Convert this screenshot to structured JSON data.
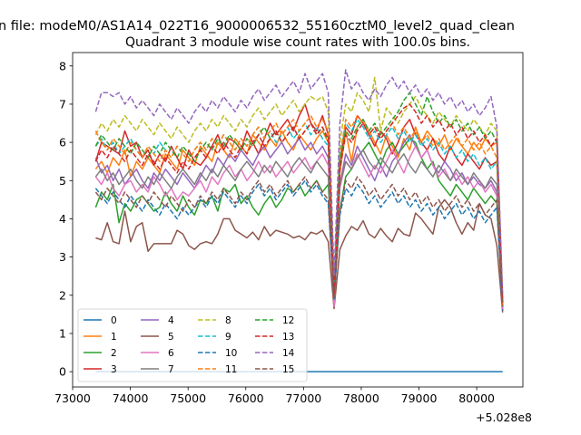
{
  "figure": {
    "suptitle": "n file: modeM0/AS1A14_022T16_9000006532_55160cztM0_level2_quad_clean",
    "title": "Quadrant 3 module wise count rates with 100.0s bins."
  },
  "chart_data": {
    "type": "line",
    "title": "Quadrant 3 module wise count rates with 100.0s bins.",
    "xlabel": "",
    "ylabel": "",
    "x_offset_label": "+5.028e8",
    "xlim": [
      73000,
      80800
    ],
    "ylim": [
      -0.4,
      8.35
    ],
    "xticks": [
      73000,
      74000,
      75000,
      76000,
      77000,
      78000,
      79000,
      80000
    ],
    "xtick_labels": [
      "73000",
      "74000",
      "75000",
      "76000",
      "77000",
      "78000",
      "79000",
      "80000"
    ],
    "yticks": [
      0,
      1,
      2,
      3,
      4,
      5,
      6,
      7,
      8
    ],
    "ytick_labels": [
      "0",
      "1",
      "2",
      "3",
      "4",
      "5",
      "6",
      "7",
      "8"
    ],
    "grid": false,
    "legend_position": "lower-left",
    "x_range": [
      73400,
      80450
    ],
    "x_step": 100,
    "series": [
      {
        "name": "0",
        "color": "#1f77b4",
        "dash": "solid",
        "values": [
          0.0,
          0.0
        ]
      },
      {
        "name": "1",
        "color": "#ff7f0e",
        "dash": "solid",
        "values": [
          5.3,
          5.5,
          5.2,
          5.6,
          5.4,
          5.8,
          5.1,
          5.5,
          5.3,
          5.6,
          5.4,
          5.2,
          5.7,
          5.5,
          5.3,
          5.8,
          5.6,
          5.4,
          5.9,
          5.7,
          5.5,
          6.0,
          5.8,
          5.6,
          6.1,
          5.9,
          5.7,
          6.2,
          6.0,
          5.8,
          6.1,
          5.9,
          6.3,
          6.0,
          5.8,
          6.2,
          6.0,
          5.8,
          6.1,
          6.3,
          6.0,
          1.9,
          5.2,
          6.3,
          5.5,
          6.4,
          6.6,
          6.3,
          6.0,
          5.7,
          6.2,
          5.9,
          5.6,
          6.1,
          5.8,
          6.4,
          6.0,
          6.3,
          6.1,
          5.9,
          6.2,
          5.8,
          6.1,
          5.9,
          5.7,
          6.0,
          5.8,
          6.1,
          5.9,
          6.0,
          1.6
        ]
      },
      {
        "name": "2",
        "color": "#2ca02c",
        "dash": "solid",
        "values": [
          4.3,
          4.7,
          4.5,
          4.9,
          3.9,
          4.4,
          4.2,
          4.5,
          4.6,
          4.4,
          4.2,
          4.3,
          4.7,
          4.4,
          4.2,
          4.6,
          4.3,
          4.1,
          4.5,
          4.4,
          4.6,
          4.2,
          4.8,
          4.7,
          4.9,
          4.4,
          4.6,
          4.3,
          4.1,
          4.4,
          4.6,
          4.3,
          4.5,
          4.8,
          4.7,
          4.9,
          4.6,
          4.8,
          5.0,
          4.7,
          4.9,
          2.0,
          4.2,
          5.1,
          5.3,
          5.6,
          5.8,
          6.0,
          5.7,
          5.4,
          5.8,
          6.0,
          5.7,
          5.9,
          6.1,
          6.0,
          5.6,
          5.3,
          5.5,
          5.0,
          4.8,
          4.6,
          4.9,
          4.7,
          4.5,
          4.8,
          4.6,
          4.4,
          4.6,
          4.4,
          1.6
        ]
      },
      {
        "name": "3",
        "color": "#d62728",
        "dash": "solid",
        "values": [
          5.5,
          6.0,
          5.9,
          5.8,
          5.7,
          6.3,
          5.9,
          6.0,
          5.6,
          5.8,
          5.4,
          5.7,
          5.5,
          5.9,
          5.6,
          5.3,
          5.8,
          5.5,
          5.4,
          5.6,
          5.9,
          6.2,
          5.8,
          6.1,
          6.0,
          5.8,
          6.3,
          6.0,
          5.7,
          6.1,
          6.5,
          6.2,
          6.4,
          6.6,
          6.3,
          6.7,
          7.0,
          6.5,
          6.3,
          6.7,
          6.2,
          1.8,
          5.5,
          6.4,
          6.2,
          6.7,
          6.5,
          6.2,
          5.9,
          6.3,
          6.1,
          5.7,
          6.0,
          6.4,
          6.6,
          6.2,
          6.0,
          5.8,
          6.1,
          5.7,
          5.5,
          5.9,
          5.6,
          5.4,
          5.7,
          5.5,
          5.3,
          5.6,
          5.4,
          5.5,
          1.7
        ]
      },
      {
        "name": "4",
        "color": "#9467bd",
        "dash": "solid",
        "values": [
          5.6,
          5.2,
          5.4,
          5.0,
          5.3,
          4.9,
          5.1,
          5.3,
          5.0,
          4.8,
          5.2,
          5.0,
          5.3,
          5.1,
          4.9,
          5.2,
          5.0,
          4.8,
          5.1,
          5.4,
          5.2,
          5.6,
          5.4,
          5.7,
          5.5,
          5.8,
          5.6,
          5.4,
          5.7,
          5.9,
          5.6,
          5.8,
          6.0,
          5.7,
          5.9,
          6.1,
          5.8,
          6.0,
          5.7,
          5.9,
          5.6,
          1.8,
          4.9,
          5.7,
          5.4,
          5.9,
          5.6,
          5.3,
          5.0,
          5.4,
          5.1,
          5.5,
          5.7,
          6.0,
          6.2,
          5.9,
          5.6,
          5.8,
          5.4,
          5.2,
          5.5,
          5.3,
          5.0,
          5.2,
          4.9,
          5.1,
          4.9,
          4.8,
          5.0,
          4.7,
          1.7
        ]
      },
      {
        "name": "5",
        "color": "#8c564b",
        "dash": "solid",
        "values": [
          3.5,
          3.45,
          3.9,
          3.4,
          3.35,
          4.2,
          3.4,
          3.8,
          3.9,
          3.15,
          3.35,
          3.35,
          3.35,
          3.35,
          3.7,
          3.6,
          3.3,
          3.2,
          3.35,
          3.4,
          3.35,
          3.6,
          4.0,
          4.0,
          3.7,
          3.6,
          3.5,
          3.65,
          3.45,
          3.8,
          3.55,
          3.7,
          3.65,
          3.6,
          3.5,
          3.55,
          3.45,
          3.65,
          3.6,
          3.7,
          3.4,
          1.65,
          3.2,
          3.55,
          3.8,
          3.7,
          3.95,
          3.6,
          3.5,
          3.75,
          3.55,
          3.4,
          3.75,
          3.6,
          3.55,
          4.15,
          4.0,
          3.8,
          3.6,
          4.3,
          4.5,
          4.3,
          3.9,
          3.6,
          3.9,
          3.7,
          4.4,
          4.1,
          4.0,
          3.3,
          1.55
        ]
      },
      {
        "name": "6",
        "color": "#e377c2",
        "dash": "solid",
        "values": [
          5.1,
          4.9,
          5.2,
          4.8,
          4.6,
          4.9,
          5.0,
          4.7,
          4.9,
          4.7,
          5.1,
          4.9,
          4.6,
          4.8,
          4.5,
          4.7,
          4.6,
          4.8,
          5.0,
          4.7,
          5.1,
          4.9,
          5.2,
          5.4,
          5.1,
          5.3,
          5.0,
          5.2,
          5.5,
          5.2,
          5.4,
          5.1,
          5.3,
          5.5,
          5.2,
          5.4,
          5.6,
          5.3,
          5.5,
          5.7,
          5.4,
          1.7,
          4.8,
          5.5,
          5.3,
          5.7,
          5.4,
          5.1,
          5.4,
          5.2,
          5.5,
          5.8,
          5.5,
          5.2,
          5.6,
          5.9,
          5.6,
          5.8,
          5.4,
          5.1,
          5.3,
          5.0,
          5.2,
          4.9,
          5.1,
          4.8,
          5.0,
          4.7,
          4.9,
          4.6,
          1.6
        ]
      },
      {
        "name": "7",
        "color": "#7f7f7f",
        "dash": "solid",
        "values": [
          5.1,
          5.3,
          5.0,
          5.2,
          4.9,
          5.1,
          5.3,
          5.0,
          4.8,
          5.1,
          4.9,
          5.2,
          5.0,
          4.8,
          5.1,
          5.3,
          5.1,
          4.9,
          5.2,
          5.0,
          5.3,
          5.1,
          5.4,
          5.2,
          5.0,
          5.3,
          5.5,
          5.3,
          5.1,
          5.4,
          5.2,
          5.5,
          5.3,
          5.1,
          5.4,
          5.6,
          5.4,
          5.2,
          5.5,
          5.3,
          5.1,
          1.9,
          4.9,
          5.5,
          5.3,
          5.6,
          5.8,
          5.5,
          5.3,
          5.6,
          5.4,
          5.2,
          5.5,
          5.7,
          5.4,
          5.2,
          5.5,
          5.3,
          5.1,
          5.4,
          5.2,
          5.0,
          5.3,
          5.1,
          4.9,
          5.2,
          5.0,
          4.8,
          5.1,
          4.9,
          1.7
        ]
      },
      {
        "name": "8",
        "color": "#bcbd22",
        "dash": "dashed",
        "values": [
          6.2,
          6.5,
          6.3,
          6.6,
          6.4,
          6.7,
          6.5,
          6.3,
          6.6,
          6.4,
          6.2,
          6.5,
          6.3,
          6.1,
          6.4,
          6.2,
          6.0,
          6.3,
          6.5,
          6.3,
          6.6,
          6.4,
          6.7,
          6.5,
          6.3,
          6.6,
          6.4,
          6.7,
          6.9,
          6.6,
          6.8,
          7.0,
          6.7,
          6.9,
          7.1,
          6.8,
          7.0,
          7.2,
          7.1,
          7.2,
          6.8,
          2.3,
          6.0,
          7.0,
          6.8,
          7.3,
          7.1,
          6.8,
          7.7,
          6.3,
          6.9,
          6.7,
          6.5,
          6.8,
          7.0,
          7.2,
          6.9,
          6.7,
          6.5,
          6.8,
          6.6,
          6.4,
          6.7,
          6.5,
          6.3,
          6.6,
          6.4,
          6.2,
          6.5,
          6.3,
          1.9
        ]
      },
      {
        "name": "9",
        "color": "#17becf",
        "dash": "dashed",
        "values": [
          5.9,
          6.1,
          5.8,
          6.0,
          5.7,
          5.9,
          6.1,
          5.8,
          5.6,
          5.9,
          5.7,
          6.0,
          5.8,
          5.6,
          5.9,
          5.7,
          5.5,
          5.8,
          6.0,
          5.8,
          6.1,
          5.9,
          6.2,
          6.0,
          5.8,
          6.1,
          5.9,
          6.2,
          6.4,
          6.1,
          6.3,
          6.0,
          6.2,
          6.4,
          6.1,
          6.3,
          6.5,
          6.2,
          6.4,
          6.1,
          5.9,
          2.2,
          5.7,
          6.5,
          6.3,
          6.6,
          6.4,
          6.1,
          6.3,
          6.0,
          6.2,
          6.4,
          6.1,
          6.3,
          6.0,
          6.2,
          5.9,
          6.1,
          5.8,
          6.0,
          5.7,
          5.9,
          5.6,
          5.8,
          5.5,
          5.7,
          5.4,
          5.6,
          5.3,
          5.5,
          1.8
        ]
      },
      {
        "name": "10",
        "color": "#1f77b4",
        "dash": "dashed",
        "values": [
          4.8,
          4.6,
          4.4,
          4.7,
          4.5,
          4.3,
          4.6,
          4.4,
          4.2,
          4.5,
          4.3,
          4.1,
          4.4,
          4.2,
          4.0,
          4.3,
          4.1,
          4.3,
          4.5,
          4.3,
          4.6,
          4.4,
          4.7,
          4.5,
          4.3,
          4.6,
          4.4,
          4.7,
          4.9,
          4.6,
          4.8,
          4.5,
          4.7,
          4.9,
          4.6,
          4.8,
          5.0,
          4.7,
          4.9,
          4.6,
          4.4,
          1.9,
          4.1,
          4.8,
          4.6,
          4.9,
          4.7,
          4.4,
          4.6,
          4.3,
          4.5,
          4.7,
          4.4,
          4.6,
          4.3,
          4.5,
          4.2,
          4.4,
          4.1,
          4.3,
          4.0,
          4.2,
          4.4,
          4.1,
          4.3,
          4.0,
          4.2,
          3.9,
          4.1,
          4.3,
          1.6
        ]
      },
      {
        "name": "11",
        "color": "#ff7f0e",
        "dash": "dashed",
        "values": [
          6.3,
          6.0,
          5.8,
          6.1,
          5.9,
          5.7,
          6.0,
          5.8,
          5.6,
          5.9,
          5.7,
          5.5,
          5.8,
          5.6,
          5.9,
          5.7,
          5.5,
          5.8,
          6.0,
          5.8,
          6.1,
          5.9,
          6.2,
          6.0,
          5.8,
          6.1,
          5.9,
          6.2,
          6.4,
          6.1,
          6.3,
          6.5,
          6.2,
          6.4,
          6.6,
          6.3,
          6.5,
          6.7,
          6.4,
          6.6,
          6.3,
          2.1,
          5.6,
          6.6,
          6.4,
          6.7,
          6.5,
          6.2,
          6.4,
          6.1,
          6.3,
          6.5,
          6.2,
          6.4,
          6.1,
          6.3,
          6.0,
          6.2,
          5.9,
          6.1,
          5.8,
          6.0,
          6.2,
          5.9,
          6.1,
          5.8,
          6.0,
          5.7,
          5.9,
          5.6,
          1.7
        ]
      },
      {
        "name": "12",
        "color": "#2ca02c",
        "dash": "dashed",
        "values": [
          5.9,
          6.2,
          6.0,
          5.8,
          6.1,
          5.9,
          5.7,
          6.0,
          5.8,
          5.6,
          5.9,
          5.7,
          6.0,
          5.8,
          5.6,
          5.9,
          5.7,
          5.5,
          5.8,
          6.0,
          5.8,
          6.1,
          5.9,
          6.2,
          6.0,
          5.8,
          6.1,
          5.9,
          6.2,
          6.4,
          6.1,
          6.3,
          6.0,
          6.2,
          6.4,
          6.1,
          6.3,
          6.5,
          6.2,
          6.4,
          6.0,
          2.0,
          5.5,
          6.3,
          6.1,
          6.4,
          6.6,
          6.3,
          6.5,
          6.2,
          6.4,
          6.6,
          6.8,
          7.1,
          7.3,
          7.0,
          6.7,
          7.2,
          6.8,
          6.5,
          6.7,
          6.4,
          6.6,
          6.3,
          6.5,
          6.2,
          6.4,
          6.1,
          6.3,
          6.0,
          1.8
        ]
      },
      {
        "name": "13",
        "color": "#d62728",
        "dash": "dashed",
        "values": [
          5.5,
          5.8,
          5.6,
          5.9,
          5.7,
          5.5,
          5.8,
          5.6,
          5.4,
          5.7,
          5.5,
          5.3,
          5.6,
          5.4,
          5.2,
          5.5,
          5.3,
          5.6,
          5.8,
          5.6,
          5.9,
          5.7,
          6.0,
          5.8,
          5.6,
          5.9,
          5.7,
          6.0,
          6.2,
          5.9,
          6.1,
          6.3,
          6.0,
          6.2,
          6.4,
          6.1,
          6.3,
          6.5,
          6.2,
          6.4,
          6.1,
          2.0,
          5.3,
          6.2,
          6.0,
          6.3,
          6.5,
          6.2,
          6.4,
          6.1,
          6.3,
          6.5,
          6.7,
          6.9,
          7.0,
          6.8,
          6.5,
          6.7,
          6.4,
          6.6,
          6.3,
          6.5,
          6.2,
          6.4,
          6.1,
          6.3,
          6.0,
          6.2,
          5.9,
          6.1,
          1.8
        ]
      },
      {
        "name": "14",
        "color": "#9467bd",
        "dash": "dashed",
        "values": [
          6.8,
          7.3,
          7.3,
          7.2,
          7.3,
          7.0,
          7.2,
          6.9,
          7.1,
          6.9,
          6.7,
          7.0,
          6.8,
          6.6,
          6.9,
          6.7,
          6.5,
          6.8,
          7.0,
          6.8,
          7.1,
          6.9,
          7.2,
          7.0,
          6.8,
          7.1,
          6.9,
          7.2,
          7.4,
          7.1,
          7.3,
          7.5,
          7.2,
          7.4,
          7.6,
          7.3,
          7.8,
          7.4,
          7.6,
          7.8,
          7.3,
          2.5,
          6.5,
          7.9,
          7.4,
          7.6,
          7.3,
          7.1,
          7.4,
          7.2,
          7.5,
          7.7,
          7.4,
          7.6,
          7.3,
          7.5,
          7.2,
          7.4,
          7.1,
          7.3,
          7.0,
          7.2,
          6.9,
          7.1,
          6.8,
          7.0,
          6.7,
          6.9,
          7.2,
          6.4,
          2.0
        ]
      },
      {
        "name": "15",
        "color": "#8c564b",
        "dash": "dashed",
        "values": [
          4.7,
          4.5,
          4.8,
          4.6,
          4.4,
          4.7,
          4.5,
          4.3,
          4.6,
          4.4,
          4.7,
          4.5,
          4.3,
          4.6,
          4.4,
          4.2,
          4.5,
          4.3,
          4.6,
          4.4,
          4.7,
          4.5,
          4.8,
          4.6,
          4.4,
          4.7,
          4.5,
          4.8,
          5.0,
          4.7,
          4.9,
          4.6,
          4.8,
          5.0,
          4.7,
          4.9,
          5.1,
          4.8,
          5.0,
          4.7,
          4.5,
          1.9,
          4.2,
          5.0,
          4.8,
          5.1,
          4.9,
          4.6,
          4.8,
          4.5,
          4.7,
          4.9,
          4.6,
          4.8,
          4.5,
          4.7,
          4.4,
          4.6,
          4.3,
          4.5,
          4.2,
          4.4,
          4.6,
          4.3,
          4.5,
          4.2,
          4.4,
          4.1,
          4.3,
          4.5,
          1.7
        ]
      }
    ]
  }
}
